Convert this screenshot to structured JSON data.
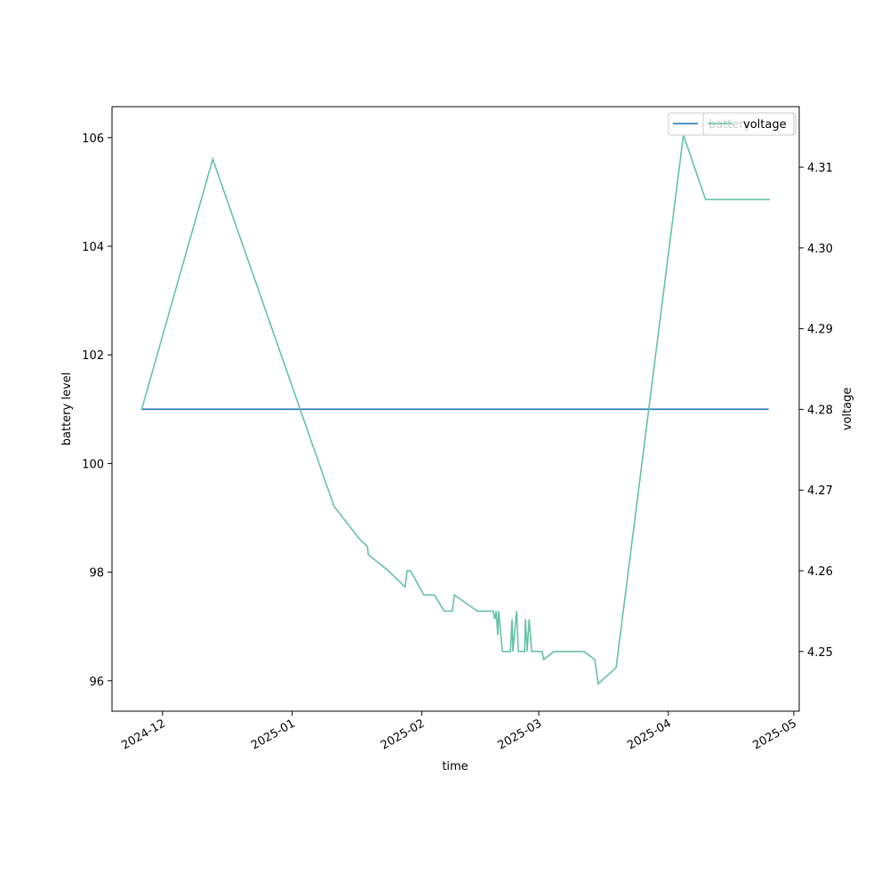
{
  "chart_data": {
    "type": "line",
    "x_label": "time",
    "y_label": "battery level",
    "y2_label": "voltage",
    "xlim": [
      -12.1,
      152.3
    ],
    "xticks": [
      {
        "value": 0,
        "label": "2024-12"
      },
      {
        "value": 31,
        "label": "2025-01"
      },
      {
        "value": 62,
        "label": "2025-02"
      },
      {
        "value": 90,
        "label": "2025-03"
      },
      {
        "value": 121,
        "label": "2025-04"
      },
      {
        "value": 151,
        "label": "2025-05"
      }
    ],
    "ylim": [
      95.44,
      106.57
    ],
    "yticks": [
      96,
      98,
      100,
      102,
      104,
      106
    ],
    "y2lim": [
      4.2426,
      4.3175
    ],
    "y2ticks": [
      4.25,
      4.26,
      4.27,
      4.28,
      4.29,
      {
        "value": 4.3,
        "label": "4.30"
      },
      4.31
    ],
    "series": [
      {
        "name": "battery",
        "color": "#1f77b4",
        "x": [
          -5,
          145
        ],
        "values": [
          101,
          101
        ]
      },
      {
        "name": "voltage",
        "color": "#66c2a5",
        "axis": "y2",
        "x": [
          -5,
          12,
          41,
          47,
          49,
          49.2,
          54,
          58,
          58.5,
          59.3,
          62.5,
          65,
          67.4,
          69.3,
          69.8,
          75.3,
          79.1,
          79.5,
          79.8,
          80.2,
          80.4,
          81.3,
          83.2,
          83.6,
          83.8,
          84.7,
          85.1,
          86.6,
          86.8,
          87.2,
          87.7,
          88.3,
          90.8,
          91.2,
          93.6,
          100.8,
          103.4,
          104.2,
          108.5,
          124.6,
          129.9,
          145.3
        ],
        "values": [
          4.28,
          4.311,
          4.268,
          4.264,
          4.263,
          4.262,
          4.26,
          4.258,
          4.26,
          4.26,
          4.257,
          4.257,
          4.255,
          4.255,
          4.257,
          4.255,
          4.255,
          4.254,
          4.255,
          4.252,
          4.255,
          4.25,
          4.25,
          4.254,
          4.25,
          4.255,
          4.25,
          4.25,
          4.254,
          4.25,
          4.254,
          4.25,
          4.25,
          4.249,
          4.25,
          4.25,
          4.249,
          4.246,
          4.248,
          4.314,
          4.306,
          4.306
        ]
      }
    ]
  }
}
